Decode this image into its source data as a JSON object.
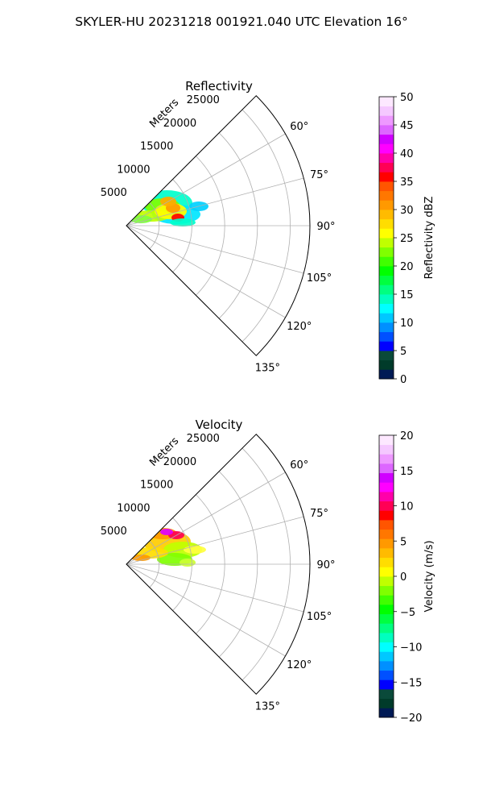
{
  "figure_title": "SKYLER-HU  20231218  001921.040 UTC Elevation 16°",
  "chart_data": [
    {
      "type": "heatmap",
      "subtype": "polar-sector",
      "title": "Reflectivity",
      "range_label": "Meters",
      "range_ticks": [
        5000,
        10000,
        15000,
        20000,
        25000
      ],
      "range_tick_labels": [
        "5000",
        "10000",
        "15000",
        "20000",
        "25000"
      ],
      "rmax": 28000,
      "azimuth_range_deg": [
        45,
        135
      ],
      "azimuth_ticks_deg": [
        60,
        75,
        90,
        105,
        120,
        135
      ],
      "azimuth_tick_labels": [
        "60°",
        "75°",
        "90°",
        "105°",
        "120°",
        "135°"
      ],
      "grid": true,
      "colorbar": {
        "label": "Reflectivity dBZ",
        "min": 0,
        "max": 50,
        "ticks": [
          0,
          5,
          10,
          15,
          20,
          25,
          30,
          35,
          40,
          45,
          50
        ],
        "tick_labels": [
          "0",
          "5",
          "10",
          "15",
          "20",
          "25",
          "30",
          "35",
          "40",
          "45",
          "50"
        ],
        "colors": [
          "#001a55",
          "#003b2a",
          "#0a4a3a",
          "#0000ff",
          "#0050ff",
          "#0090ff",
          "#00c8ff",
          "#00ffff",
          "#00ffbf",
          "#00ff80",
          "#00ff40",
          "#00ff00",
          "#40ff00",
          "#80ff00",
          "#c0ff00",
          "#ffff00",
          "#ffdd00",
          "#ffbb00",
          "#ff9900",
          "#ff7700",
          "#ff5500",
          "#ff0000",
          "#ff0055",
          "#ff00aa",
          "#ff00ff",
          "#d000ff",
          "#dd66ff",
          "#ee99ff",
          "#f5c8ff",
          "#fde8ff"
        ]
      }
    },
    {
      "type": "heatmap",
      "subtype": "polar-sector",
      "title": "Velocity",
      "range_label": "Meters",
      "range_ticks": [
        5000,
        10000,
        15000,
        20000,
        25000
      ],
      "range_tick_labels": [
        "5000",
        "10000",
        "15000",
        "20000",
        "25000"
      ],
      "rmax": 28000,
      "azimuth_range_deg": [
        45,
        135
      ],
      "azimuth_ticks_deg": [
        60,
        75,
        90,
        105,
        120,
        135
      ],
      "azimuth_tick_labels": [
        "60°",
        "75°",
        "90°",
        "105°",
        "120°",
        "135°"
      ],
      "grid": true,
      "colorbar": {
        "label": "Velocity (m/s)",
        "min": -20,
        "max": 20,
        "ticks": [
          -20,
          -15,
          -10,
          -5,
          0,
          5,
          10,
          15,
          20
        ],
        "tick_labels": [
          "−20",
          "−15",
          "−10",
          "−5",
          "0",
          "5",
          "10",
          "15",
          "20"
        ],
        "colors": [
          "#001a55",
          "#003b2a",
          "#0a4a3a",
          "#0000ff",
          "#0050ff",
          "#0090ff",
          "#00c8ff",
          "#00ffff",
          "#00ffbf",
          "#00ff80",
          "#00ff40",
          "#00ff00",
          "#40ff00",
          "#80ff00",
          "#c0ff00",
          "#ffff00",
          "#ffdd00",
          "#ffbb00",
          "#ff9900",
          "#ff7700",
          "#ff5500",
          "#ff0000",
          "#ff0055",
          "#ff00aa",
          "#ff00ff",
          "#d000ff",
          "#dd66ff",
          "#ee99ff",
          "#f5c8ff",
          "#fde8ff"
        ]
      }
    }
  ]
}
